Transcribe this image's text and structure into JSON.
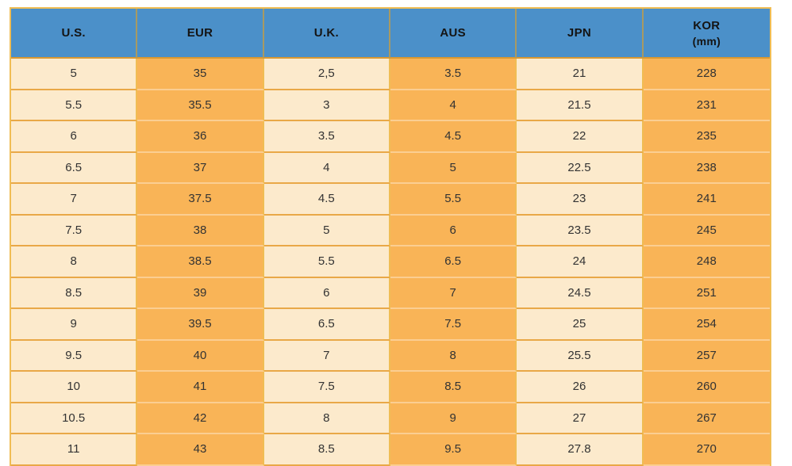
{
  "chart_data": {
    "type": "table",
    "columns": [
      {
        "label": "U.S.",
        "sub": ""
      },
      {
        "label": "EUR",
        "sub": ""
      },
      {
        "label": "U.K.",
        "sub": ""
      },
      {
        "label": "AUS",
        "sub": ""
      },
      {
        "label": "JPN",
        "sub": ""
      },
      {
        "label": "KOR",
        "sub": "(mm)"
      }
    ],
    "rows": [
      [
        "5",
        "35",
        "2,5",
        "3.5",
        "21",
        "228"
      ],
      [
        "5.5",
        "35.5",
        "3",
        "4",
        "21.5",
        "231"
      ],
      [
        "6",
        "36",
        "3.5",
        "4.5",
        "22",
        "235"
      ],
      [
        "6.5",
        "37",
        "4",
        "5",
        "22.5",
        "238"
      ],
      [
        "7",
        "37.5",
        "4.5",
        "5.5",
        "23",
        "241"
      ],
      [
        "7.5",
        "38",
        "5",
        "6",
        "23.5",
        "245"
      ],
      [
        "8",
        "38.5",
        "5.5",
        "6.5",
        "24",
        "248"
      ],
      [
        "8.5",
        "39",
        "6",
        "7",
        "24.5",
        "251"
      ],
      [
        "9",
        "39.5",
        "6.5",
        "7.5",
        "25",
        "254"
      ],
      [
        "9.5",
        "40",
        "7",
        "8",
        "25.5",
        "257"
      ],
      [
        "10",
        "41",
        "7.5",
        "8.5",
        "26",
        "260"
      ],
      [
        "10.5",
        "42",
        "8",
        "9",
        "27",
        "267"
      ],
      [
        "11",
        "43",
        "8.5",
        "9.5",
        "27.8",
        "270"
      ]
    ],
    "layout_hints": {
      "column_fill_pattern": [
        "cream",
        "orange",
        "cream",
        "orange",
        "cream",
        "orange"
      ],
      "grid": "on",
      "header_position": "top"
    }
  },
  "colors": {
    "header_bg": "#4B90C9",
    "header_text": "#141414",
    "header_sep": "#A89A62",
    "header_bottom": "#DA9830",
    "row_cream": "#FCEACC",
    "row_orange": "#F9B457",
    "row_sep_cream": "#E9A847",
    "row_sep_orange": "#FBCE92",
    "grid_gold": "#F0BD54",
    "cell_text": "#333333"
  }
}
